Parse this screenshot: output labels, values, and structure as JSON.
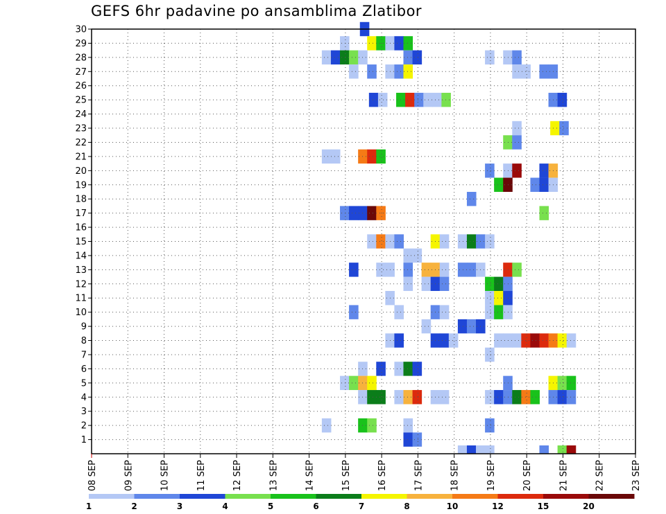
{
  "chart_data": {
    "type": "heatmap",
    "title": "GEFS 6hr padavine po ansamblima Zlatibor",
    "xlabel": "",
    "ylabel": "",
    "x_ticks": [
      "08 SEP",
      "09 SEP",
      "10 SEP",
      "11 SEP",
      "12 SEP",
      "13 SEP",
      "14 SEP",
      "15 SEP",
      "16 SEP",
      "17 SEP",
      "18 SEP",
      "19 SEP",
      "20 SEP",
      "21 SEP",
      "22 SEP",
      "23 SEP"
    ],
    "y_ticks": [
      1,
      2,
      3,
      4,
      5,
      6,
      7,
      8,
      9,
      10,
      11,
      12,
      13,
      14,
      15,
      16,
      17,
      18,
      19,
      20,
      21,
      22,
      23,
      24,
      25,
      26,
      27,
      28,
      29,
      30
    ],
    "x_range_days": [
      0,
      15
    ],
    "y_range": [
      0,
      30
    ],
    "grid": true,
    "legend": {
      "placement": "bottom",
      "labels": [
        "1",
        "2",
        "3",
        "4",
        "5",
        "6",
        "7",
        "8",
        "10",
        "12",
        "15",
        "20"
      ],
      "colors": [
        "#b4c8f5",
        "#5f87ea",
        "#1f46d6",
        "#78e04e",
        "#19c21b",
        "#0b7d1a",
        "#f5f500",
        "#f7b23d",
        "#f57a16",
        "#dc2a0d",
        "#9a0a0a",
        "#6a0808"
      ]
    },
    "series": [
      {
        "member": 30,
        "cells": [
          [
            15.4,
            2
          ]
        ]
      },
      {
        "member": 29,
        "cells": [
          [
            14.85,
            0
          ],
          [
            15.6,
            6
          ],
          [
            15.85,
            4
          ],
          [
            16.1,
            0
          ],
          [
            16.35,
            2
          ],
          [
            16.6,
            4
          ]
        ]
      },
      {
        "member": 28,
        "cells": [
          [
            14.35,
            0
          ],
          [
            14.6,
            2
          ],
          [
            14.85,
            5
          ],
          [
            15.1,
            3
          ],
          [
            15.35,
            0
          ],
          [
            16.6,
            1
          ],
          [
            16.85,
            2
          ],
          [
            18.85,
            0
          ],
          [
            19.35,
            0
          ],
          [
            19.6,
            1
          ]
        ]
      },
      {
        "member": 27,
        "cells": [
          [
            15.1,
            0
          ],
          [
            15.6,
            1
          ],
          [
            16.1,
            0
          ],
          [
            16.35,
            1
          ],
          [
            16.6,
            6
          ],
          [
            19.6,
            0
          ],
          [
            19.85,
            0
          ],
          [
            20.35,
            1
          ],
          [
            20.6,
            1
          ]
        ]
      },
      {
        "member": 26,
        "cells": []
      },
      {
        "member": 25,
        "cells": [
          [
            15.65,
            2
          ],
          [
            15.9,
            0
          ],
          [
            16.4,
            4
          ],
          [
            16.65,
            9
          ],
          [
            16.9,
            1
          ],
          [
            17.15,
            0
          ],
          [
            17.4,
            0
          ],
          [
            17.65,
            3
          ],
          [
            20.6,
            1
          ],
          [
            20.85,
            2
          ]
        ]
      },
      {
        "member": 24,
        "cells": []
      },
      {
        "member": 23,
        "cells": [
          [
            19.6,
            0
          ],
          [
            20.65,
            6
          ],
          [
            20.9,
            1
          ]
        ]
      },
      {
        "member": 22,
        "cells": [
          [
            19.35,
            3
          ],
          [
            19.6,
            1
          ]
        ]
      },
      {
        "member": 21,
        "cells": [
          [
            14.35,
            0
          ],
          [
            14.6,
            0
          ],
          [
            15.35,
            8
          ],
          [
            15.6,
            9
          ],
          [
            15.85,
            4
          ]
        ]
      },
      {
        "member": 20,
        "cells": [
          [
            18.85,
            1
          ],
          [
            19.35,
            0
          ],
          [
            19.6,
            10
          ],
          [
            20.35,
            2
          ],
          [
            20.6,
            7
          ]
        ]
      },
      {
        "member": 19,
        "cells": [
          [
            19.1,
            4
          ],
          [
            19.35,
            11
          ],
          [
            20.1,
            1
          ],
          [
            20.35,
            2
          ],
          [
            20.6,
            0
          ]
        ]
      },
      {
        "member": 18,
        "cells": [
          [
            18.35,
            1
          ]
        ]
      },
      {
        "member": 17,
        "cells": [
          [
            14.85,
            1
          ],
          [
            15.1,
            2
          ],
          [
            15.35,
            2
          ],
          [
            15.6,
            11
          ],
          [
            15.85,
            8
          ],
          [
            20.35,
            3
          ]
        ]
      },
      {
        "member": 16,
        "cells": []
      },
      {
        "member": 15,
        "cells": [
          [
            15.6,
            0
          ],
          [
            15.85,
            8
          ],
          [
            16.1,
            0
          ],
          [
            16.35,
            1
          ],
          [
            17.35,
            6
          ],
          [
            17.6,
            0
          ],
          [
            18.1,
            0
          ],
          [
            18.35,
            5
          ],
          [
            18.6,
            1
          ],
          [
            18.85,
            0
          ]
        ]
      },
      {
        "member": 14,
        "cells": [
          [
            16.6,
            0
          ],
          [
            16.85,
            0
          ]
        ]
      },
      {
        "member": 13,
        "cells": [
          [
            15.1,
            2
          ],
          [
            15.85,
            0
          ],
          [
            16.1,
            0
          ],
          [
            16.6,
            1
          ],
          [
            17.1,
            7
          ],
          [
            17.35,
            7
          ],
          [
            17.6,
            0
          ],
          [
            18.1,
            1
          ],
          [
            18.35,
            1
          ],
          [
            18.6,
            0
          ],
          [
            19.35,
            9
          ],
          [
            19.6,
            3
          ]
        ]
      },
      {
        "member": 12,
        "cells": [
          [
            16.6,
            0
          ],
          [
            17.1,
            0
          ],
          [
            17.35,
            2
          ],
          [
            17.6,
            1
          ],
          [
            18.85,
            4
          ],
          [
            19.1,
            5
          ],
          [
            19.35,
            1
          ]
        ]
      },
      {
        "member": 11,
        "cells": [
          [
            16.1,
            0
          ],
          [
            18.85,
            0
          ],
          [
            19.1,
            6
          ],
          [
            19.35,
            2
          ]
        ]
      },
      {
        "member": 10,
        "cells": [
          [
            15.1,
            1
          ],
          [
            16.35,
            0
          ],
          [
            17.35,
            1
          ],
          [
            17.6,
            0
          ],
          [
            18.85,
            0
          ],
          [
            19.1,
            4
          ],
          [
            19.35,
            0
          ]
        ]
      },
      {
        "member": 9,
        "cells": [
          [
            17.1,
            0
          ],
          [
            18.1,
            2
          ],
          [
            18.35,
            1
          ],
          [
            18.6,
            2
          ]
        ]
      },
      {
        "member": 8,
        "cells": [
          [
            16.1,
            0
          ],
          [
            16.35,
            2
          ],
          [
            17.35,
            2
          ],
          [
            17.6,
            2
          ],
          [
            17.85,
            0
          ],
          [
            19.1,
            0
          ],
          [
            19.35,
            0
          ],
          [
            19.6,
            0
          ],
          [
            19.85,
            9
          ],
          [
            20.1,
            10
          ],
          [
            20.35,
            9
          ],
          [
            20.6,
            8
          ],
          [
            20.85,
            6
          ],
          [
            21.1,
            0
          ]
        ]
      },
      {
        "member": 7,
        "cells": [
          [
            18.85,
            0
          ]
        ]
      },
      {
        "member": 6,
        "cells": [
          [
            15.35,
            0
          ],
          [
            15.85,
            2
          ],
          [
            16.35,
            0
          ],
          [
            16.6,
            5
          ],
          [
            16.85,
            2
          ]
        ]
      },
      {
        "member": 5,
        "cells": [
          [
            14.85,
            0
          ],
          [
            15.1,
            3
          ],
          [
            15.35,
            7
          ],
          [
            15.6,
            6
          ],
          [
            19.35,
            1
          ],
          [
            20.6,
            6
          ],
          [
            20.85,
            3
          ],
          [
            21.1,
            4
          ]
        ]
      },
      {
        "member": 4,
        "cells": [
          [
            15.35,
            0
          ],
          [
            15.6,
            5
          ],
          [
            15.85,
            5
          ],
          [
            16.35,
            0
          ],
          [
            16.6,
            7
          ],
          [
            16.85,
            9
          ],
          [
            17.35,
            0
          ],
          [
            17.6,
            0
          ],
          [
            18.85,
            0
          ],
          [
            19.1,
            2
          ],
          [
            19.35,
            1
          ],
          [
            19.6,
            5
          ],
          [
            19.85,
            8
          ],
          [
            20.1,
            4
          ],
          [
            20.6,
            1
          ],
          [
            20.85,
            2
          ],
          [
            21.1,
            1
          ]
        ]
      },
      {
        "member": 3,
        "cells": []
      },
      {
        "member": 2,
        "cells": [
          [
            14.35,
            0
          ],
          [
            15.35,
            4
          ],
          [
            15.6,
            3
          ],
          [
            16.6,
            0
          ],
          [
            18.85,
            1
          ]
        ]
      },
      {
        "member": 1,
        "cells": [
          [
            16.6,
            2
          ],
          [
            16.85,
            1
          ]
        ]
      },
      {
        "member": 0,
        "cells": [
          [
            18.1,
            0
          ],
          [
            18.35,
            2
          ],
          [
            18.6,
            0
          ],
          [
            18.85,
            0
          ],
          [
            20.35,
            1
          ],
          [
            20.85,
            3
          ],
          [
            21.1,
            10
          ]
        ]
      }
    ]
  }
}
